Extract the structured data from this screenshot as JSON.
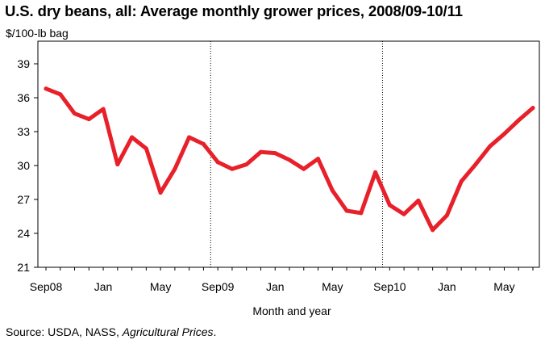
{
  "chart_data": {
    "type": "line",
    "title": "U.S. dry beans, all:  Average monthly grower prices, 2008/09-10/11",
    "ylabel": "$/100-lb bag",
    "xlabel": "Month and year",
    "source": {
      "prefix": "Source:  USDA, NASS, ",
      "italic": "Agricultural Prices",
      "suffix": "."
    },
    "ylim": [
      21,
      41
    ],
    "yticks": [
      21,
      24,
      27,
      30,
      33,
      36,
      39
    ],
    "xticks": [
      {
        "label": "Sep08",
        "index": 0
      },
      {
        "label": "Jan",
        "index": 4
      },
      {
        "label": "May",
        "index": 8
      },
      {
        "label": "Sep09",
        "index": 12
      },
      {
        "label": "Jan",
        "index": 16
      },
      {
        "label": "May",
        "index": 20
      },
      {
        "label": "Sep10",
        "index": 24
      },
      {
        "label": "Jan",
        "index": 28
      },
      {
        "label": "May",
        "index": 32
      }
    ],
    "marketing_year_dividers": [
      11.5,
      23.5
    ],
    "series": [
      {
        "name": "Average monthly grower price",
        "color": "#e8202a",
        "values": [
          36.8,
          36.3,
          34.6,
          34.1,
          35.0,
          30.1,
          32.5,
          31.5,
          27.6,
          29.7,
          32.5,
          31.9,
          30.3,
          29.7,
          30.1,
          31.2,
          31.1,
          30.5,
          29.7,
          30.6,
          27.8,
          26.0,
          25.8,
          29.4,
          26.5,
          25.7,
          26.9,
          24.3,
          25.6,
          28.6,
          30.1,
          31.7,
          32.8,
          34.0,
          35.1
        ]
      }
    ]
  }
}
